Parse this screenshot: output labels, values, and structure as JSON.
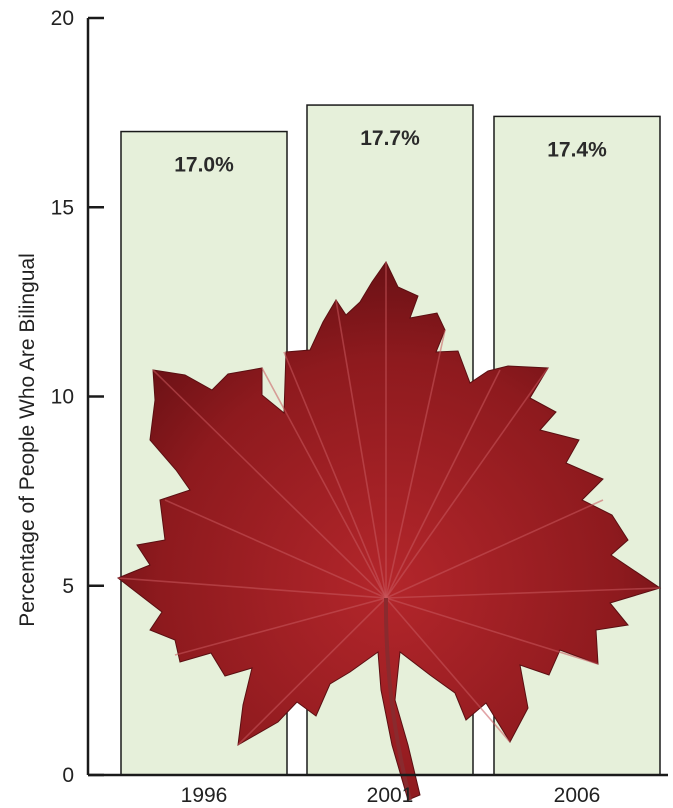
{
  "chart_data": {
    "type": "bar",
    "categories": [
      "1996",
      "2001",
      "2006"
    ],
    "values": [
      17.0,
      17.7,
      17.4
    ],
    "data_labels": [
      "17.0%",
      "17.7%",
      "17.4%"
    ],
    "title": "",
    "xlabel": "",
    "ylabel": "Percentage of People Who Are Bilingual",
    "ylim": [
      0,
      20
    ],
    "yticks": [
      0,
      5,
      10,
      15,
      20
    ],
    "grid": false,
    "colors": {
      "bar_fill": "#e6f0da",
      "bar_stroke": "#1a1a1a",
      "axis": "#1a1a1a",
      "leaf": "#8e1a1e"
    },
    "decoration": "red-maple-leaf"
  }
}
